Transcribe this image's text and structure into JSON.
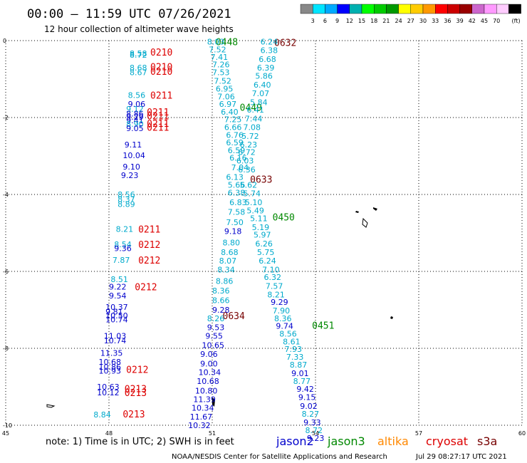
{
  "header": {
    "title": "00:00 – 11:59 UTC 07/26/2021",
    "subtitle": "12 hour collection of altimeter wave heights"
  },
  "colorbar": {
    "unit": "(ft)",
    "bins": [
      {
        "color": "#888888",
        "label": ""
      },
      {
        "color": "#00e5ff",
        "label": "3"
      },
      {
        "color": "#00aaff",
        "label": "6"
      },
      {
        "color": "#0000ff",
        "label": "9"
      },
      {
        "color": "#00b0b0",
        "label": "12"
      },
      {
        "color": "#00ff00",
        "label": "15"
      },
      {
        "color": "#00cc00",
        "label": "18"
      },
      {
        "color": "#009900",
        "label": "21"
      },
      {
        "color": "#ffff00",
        "label": "24"
      },
      {
        "color": "#ffcc00",
        "label": "27"
      },
      {
        "color": "#ff9900",
        "label": "30"
      },
      {
        "color": "#ff0000",
        "label": "33"
      },
      {
        "color": "#cc0000",
        "label": "36"
      },
      {
        "color": "#990000",
        "label": "39"
      },
      {
        "color": "#cc66cc",
        "label": "42"
      },
      {
        "color": "#ff99ff",
        "label": "45"
      },
      {
        "color": "#ffccff",
        "label": "70"
      },
      {
        "color": "#000000",
        "label": ""
      }
    ]
  },
  "axes": {
    "x_ticks": [
      "45",
      "48",
      "51",
      "54",
      "57",
      "60"
    ],
    "y_ticks": [
      "0",
      "-2",
      "-4",
      "-6",
      "-8",
      "-10"
    ],
    "lon_range": [
      45,
      60
    ],
    "lat_range": [
      -10,
      0
    ]
  },
  "colors": {
    "jason2": "#0000cc",
    "jason3": "#008800",
    "altika": "#ff8800",
    "cryosat": "#dd0000",
    "s3a": "#770000",
    "cyan": "#00aacc",
    "gridline": "#000000"
  },
  "passes": [
    {
      "label": "0210",
      "color": "#dd0000",
      "lon": 49.2,
      "lat": -0.3
    },
    {
      "label": "0210",
      "color": "#dd0000",
      "lon": 49.2,
      "lat": -0.68
    },
    {
      "label": "0210",
      "color": "#dd0000",
      "lon": 49.2,
      "lat": -0.8
    },
    {
      "label": "0211",
      "color": "#dd0000",
      "lon": 49.2,
      "lat": -1.42
    },
    {
      "label": "0211",
      "color": "#dd0000",
      "lon": 49.1,
      "lat": -1.85
    },
    {
      "label": "0211",
      "color": "#dd0000",
      "lon": 49.1,
      "lat": -1.95
    },
    {
      "label": "0211",
      "color": "#dd0000",
      "lon": 49.1,
      "lat": -2.15
    },
    {
      "label": "0211",
      "color": "#dd0000",
      "lon": 49.1,
      "lat": -2.25
    },
    {
      "label": "0211",
      "color": "#dd0000",
      "lon": 48.85,
      "lat": -4.9
    },
    {
      "label": "0212",
      "color": "#dd0000",
      "lon": 48.85,
      "lat": -5.3
    },
    {
      "label": "0212",
      "color": "#dd0000",
      "lon": 48.85,
      "lat": -5.7
    },
    {
      "label": "0212",
      "color": "#dd0000",
      "lon": 48.75,
      "lat": -6.4
    },
    {
      "label": "0212",
      "color": "#dd0000",
      "lon": 48.5,
      "lat": -8.55
    },
    {
      "label": "0213",
      "color": "#dd0000",
      "lon": 48.45,
      "lat": -9.05
    },
    {
      "label": "0213",
      "color": "#dd0000",
      "lon": 48.45,
      "lat": -9.15
    },
    {
      "label": "0213",
      "color": "#dd0000",
      "lon": 48.4,
      "lat": -9.7
    },
    {
      "label": "0448",
      "color": "#008800",
      "lon": 51.1,
      "lat": -0.03
    },
    {
      "label": "0449",
      "color": "#008800",
      "lon": 51.8,
      "lat": -1.73
    },
    {
      "label": "0450",
      "color": "#008800",
      "lon": 52.75,
      "lat": -4.58
    },
    {
      "label": "0451",
      "color": "#008800",
      "lon": 53.9,
      "lat": -7.4
    },
    {
      "label": "0632",
      "color": "#770000",
      "lon": 52.8,
      "lat": -0.05
    },
    {
      "label": "0633",
      "color": "#770000",
      "lon": 52.1,
      "lat": -3.6
    },
    {
      "label": "0634",
      "color": "#770000",
      "lon": 51.3,
      "lat": -7.15
    }
  ],
  "readings": [
    {
      "v": "8.58",
      "c": "#00aacc",
      "lon": 48.6,
      "lat": -0.33
    },
    {
      "v": "8.72",
      "c": "#00aacc",
      "lon": 48.6,
      "lat": -0.37
    },
    {
      "v": "8.68",
      "c": "#00aacc",
      "lon": 48.6,
      "lat": -0.7
    },
    {
      "v": "8.67",
      "c": "#00aacc",
      "lon": 48.6,
      "lat": -0.82
    },
    {
      "v": "8.56",
      "c": "#00aacc",
      "lon": 48.55,
      "lat": -1.42
    },
    {
      "v": "9.06",
      "c": "#0000cc",
      "lon": 48.55,
      "lat": -1.65
    },
    {
      "v": "9.12",
      "c": "#00aacc",
      "lon": 48.5,
      "lat": -1.78
    },
    {
      "v": "8.86",
      "c": "#0000cc",
      "lon": 48.5,
      "lat": -1.9
    },
    {
      "v": "9.29",
      "c": "#0000cc",
      "lon": 48.5,
      "lat": -1.98
    },
    {
      "v": "9.41",
      "c": "#0000cc",
      "lon": 48.5,
      "lat": -2.07
    },
    {
      "v": "8.90",
      "c": "#00aacc",
      "lon": 48.5,
      "lat": -2.17
    },
    {
      "v": "9.05",
      "c": "#0000cc",
      "lon": 48.5,
      "lat": -2.28
    },
    {
      "v": "9.11",
      "c": "#0000cc",
      "lon": 48.45,
      "lat": -2.7
    },
    {
      "v": "10.04",
      "c": "#0000cc",
      "lon": 48.4,
      "lat": -2.98
    },
    {
      "v": "9.10",
      "c": "#0000cc",
      "lon": 48.4,
      "lat": -3.28
    },
    {
      "v": "9.23",
      "c": "#0000cc",
      "lon": 48.35,
      "lat": -3.5
    },
    {
      "v": "8.56",
      "c": "#00aacc",
      "lon": 48.25,
      "lat": -4.0
    },
    {
      "v": "8.37",
      "c": "#00aacc",
      "lon": 48.25,
      "lat": -4.12
    },
    {
      "v": "8.89",
      "c": "#00aacc",
      "lon": 48.25,
      "lat": -4.25
    },
    {
      "v": "8.21",
      "c": "#00aacc",
      "lon": 48.2,
      "lat": -4.9
    },
    {
      "v": "8.54",
      "c": "#00aacc",
      "lon": 48.15,
      "lat": -5.3
    },
    {
      "v": "9.36",
      "c": "#0000cc",
      "lon": 48.15,
      "lat": -5.4
    },
    {
      "v": "7.87",
      "c": "#00aacc",
      "lon": 48.1,
      "lat": -5.7
    },
    {
      "v": "8.51",
      "c": "#00aacc",
      "lon": 48.05,
      "lat": -6.2
    },
    {
      "v": "9.22",
      "c": "#0000cc",
      "lon": 48.0,
      "lat": -6.4
    },
    {
      "v": "9.54",
      "c": "#0000cc",
      "lon": 48.0,
      "lat": -6.63
    },
    {
      "v": "10.37",
      "c": "#0000cc",
      "lon": 47.9,
      "lat": -6.93
    },
    {
      "v": "9.81",
      "c": "#0000cc",
      "lon": 47.9,
      "lat": -7.05
    },
    {
      "v": "10.50",
      "c": "#0000cc",
      "lon": 47.9,
      "lat": -7.15
    },
    {
      "v": "10.74",
      "c": "#0000cc",
      "lon": 47.9,
      "lat": -7.25
    },
    {
      "v": "11.03",
      "c": "#0000cc",
      "lon": 47.85,
      "lat": -7.68
    },
    {
      "v": "10.74",
      "c": "#0000cc",
      "lon": 47.85,
      "lat": -7.8
    },
    {
      "v": "11.35",
      "c": "#0000cc",
      "lon": 47.75,
      "lat": -8.12
    },
    {
      "v": "10.68",
      "c": "#0000cc",
      "lon": 47.7,
      "lat": -8.35
    },
    {
      "v": "10.86",
      "c": "#0000cc",
      "lon": 47.7,
      "lat": -8.48
    },
    {
      "v": "10.93",
      "c": "#0000cc",
      "lon": 47.7,
      "lat": -8.58
    },
    {
      "v": "10.63",
      "c": "#0000cc",
      "lon": 47.65,
      "lat": -9.0
    },
    {
      "v": "10.12",
      "c": "#0000cc",
      "lon": 47.65,
      "lat": -9.15
    },
    {
      "v": "8.84",
      "c": "#00aacc",
      "lon": 47.55,
      "lat": -9.72
    },
    {
      "v": "8.03",
      "c": "#00aacc",
      "lon": 50.85,
      "lat": -0.03
    },
    {
      "v": "7.52",
      "c": "#00aacc",
      "lon": 50.9,
      "lat": -0.23
    },
    {
      "v": "7.41",
      "c": "#00aacc",
      "lon": 50.95,
      "lat": -0.43
    },
    {
      "v": "7.26",
      "c": "#00aacc",
      "lon": 51.0,
      "lat": -0.62
    },
    {
      "v": "7.53",
      "c": "#00aacc",
      "lon": 51.0,
      "lat": -0.82
    },
    {
      "v": "7.52",
      "c": "#00aacc",
      "lon": 51.05,
      "lat": -1.05
    },
    {
      "v": "6.95",
      "c": "#00aacc",
      "lon": 51.1,
      "lat": -1.25
    },
    {
      "v": "7.06",
      "c": "#00aacc",
      "lon": 51.15,
      "lat": -1.45
    },
    {
      "v": "6.97",
      "c": "#00aacc",
      "lon": 51.2,
      "lat": -1.65
    },
    {
      "v": "6.40",
      "c": "#00aacc",
      "lon": 51.25,
      "lat": -1.85
    },
    {
      "v": "7.25",
      "c": "#00aacc",
      "lon": 51.35,
      "lat": -2.05
    },
    {
      "v": "6.66",
      "c": "#00aacc",
      "lon": 51.35,
      "lat": -2.25
    },
    {
      "v": "6.76",
      "c": "#00aacc",
      "lon": 51.4,
      "lat": -2.45
    },
    {
      "v": "6.59",
      "c": "#00aacc",
      "lon": 51.4,
      "lat": -2.65
    },
    {
      "v": "6.59",
      "c": "#00aacc",
      "lon": 51.45,
      "lat": -2.85
    },
    {
      "v": "6.16",
      "c": "#00aacc",
      "lon": 51.5,
      "lat": -3.05
    },
    {
      "v": "7.04",
      "c": "#00aacc",
      "lon": 51.55,
      "lat": -3.3
    },
    {
      "v": "6.13",
      "c": "#00aacc",
      "lon": 51.4,
      "lat": -3.55
    },
    {
      "v": "5.66",
      "c": "#00aacc",
      "lon": 51.45,
      "lat": -3.75
    },
    {
      "v": "6.38",
      "c": "#00aacc",
      "lon": 51.45,
      "lat": -3.95
    },
    {
      "v": "6.83",
      "c": "#00aacc",
      "lon": 51.5,
      "lat": -4.2
    },
    {
      "v": "7.58",
      "c": "#00aacc",
      "lon": 51.45,
      "lat": -4.45
    },
    {
      "v": "7.50",
      "c": "#00aacc",
      "lon": 51.4,
      "lat": -4.72
    },
    {
      "v": "9.18",
      "c": "#0000cc",
      "lon": 51.35,
      "lat": -4.95
    },
    {
      "v": "8.80",
      "c": "#00aacc",
      "lon": 51.3,
      "lat": -5.25
    },
    {
      "v": "8.68",
      "c": "#00aacc",
      "lon": 51.25,
      "lat": -5.5
    },
    {
      "v": "8.07",
      "c": "#00aacc",
      "lon": 51.2,
      "lat": -5.72
    },
    {
      "v": "8.34",
      "c": "#00aacc",
      "lon": 51.15,
      "lat": -5.95
    },
    {
      "v": "8.86",
      "c": "#00aacc",
      "lon": 51.1,
      "lat": -6.25
    },
    {
      "v": "8.36",
      "c": "#00aacc",
      "lon": 51.0,
      "lat": -6.5
    },
    {
      "v": "8.66",
      "c": "#00aacc",
      "lon": 51.0,
      "lat": -6.75
    },
    {
      "v": "9.28",
      "c": "#0000cc",
      "lon": 51.0,
      "lat": -7.0
    },
    {
      "v": "8.26",
      "c": "#00aacc",
      "lon": 50.85,
      "lat": -7.22
    },
    {
      "v": "9.53",
      "c": "#0000cc",
      "lon": 50.85,
      "lat": -7.45
    },
    {
      "v": "9.55",
      "c": "#0000cc",
      "lon": 50.8,
      "lat": -7.68
    },
    {
      "v": "10.65",
      "c": "#0000cc",
      "lon": 50.7,
      "lat": -7.92
    },
    {
      "v": "9.06",
      "c": "#0000cc",
      "lon": 50.65,
      "lat": -8.15
    },
    {
      "v": "9.00",
      "c": "#0000cc",
      "lon": 50.65,
      "lat": -8.4
    },
    {
      "v": "10.34",
      "c": "#0000cc",
      "lon": 50.6,
      "lat": -8.62
    },
    {
      "v": "10.68",
      "c": "#0000cc",
      "lon": 50.55,
      "lat": -8.85
    },
    {
      "v": "10.80",
      "c": "#0000cc",
      "lon": 50.5,
      "lat": -9.1
    },
    {
      "v": "11.39",
      "c": "#0000cc",
      "lon": 50.45,
      "lat": -9.32
    },
    {
      "v": "10.34",
      "c": "#0000cc",
      "lon": 50.4,
      "lat": -9.55
    },
    {
      "v": "11.67",
      "c": "#0000cc",
      "lon": 50.35,
      "lat": -9.78
    },
    {
      "v": "10.32",
      "c": "#0000cc",
      "lon": 50.3,
      "lat": -10.0
    },
    {
      "v": "6.24",
      "c": "#00aacc",
      "lon": 52.4,
      "lat": -0.03
    },
    {
      "v": "6.38",
      "c": "#00aacc",
      "lon": 52.4,
      "lat": -0.25
    },
    {
      "v": "6.68",
      "c": "#00aacc",
      "lon": 52.35,
      "lat": -0.48
    },
    {
      "v": "6.39",
      "c": "#00aacc",
      "lon": 52.3,
      "lat": -0.7
    },
    {
      "v": "5.86",
      "c": "#00aacc",
      "lon": 52.25,
      "lat": -0.92
    },
    {
      "v": "6.40",
      "c": "#00aacc",
      "lon": 52.2,
      "lat": -1.15
    },
    {
      "v": "7.07",
      "c": "#00aacc",
      "lon": 52.15,
      "lat": -1.37
    },
    {
      "v": "5.84",
      "c": "#00aacc",
      "lon": 52.1,
      "lat": -1.6
    },
    {
      "v": "6.41",
      "c": "#00aacc",
      "lon": 52.0,
      "lat": -1.8
    },
    {
      "v": "7.44",
      "c": "#00aacc",
      "lon": 51.95,
      "lat": -2.03
    },
    {
      "v": "7.08",
      "c": "#00aacc",
      "lon": 51.9,
      "lat": -2.25
    },
    {
      "v": "5.72",
      "c": "#00aacc",
      "lon": 51.85,
      "lat": -2.48
    },
    {
      "v": "6.23",
      "c": "#00aacc",
      "lon": 51.8,
      "lat": -2.7
    },
    {
      "v": "6.72",
      "c": "#00aacc",
      "lon": 51.75,
      "lat": -2.9
    },
    {
      "v": "6.03",
      "c": "#00aacc",
      "lon": 51.7,
      "lat": -3.12
    },
    {
      "v": "6.36",
      "c": "#00aacc",
      "lon": 51.75,
      "lat": -3.35
    },
    {
      "v": "5.62",
      "c": "#00aacc",
      "lon": 51.8,
      "lat": -3.75
    },
    {
      "v": "5.74",
      "c": "#00aacc",
      "lon": 51.9,
      "lat": -3.97
    },
    {
      "v": "5.10",
      "c": "#00aacc",
      "lon": 51.95,
      "lat": -4.2
    },
    {
      "v": "5.49",
      "c": "#00aacc",
      "lon": 52.0,
      "lat": -4.42
    },
    {
      "v": "5.11",
      "c": "#00aacc",
      "lon": 52.1,
      "lat": -4.62
    },
    {
      "v": "5.19",
      "c": "#00aacc",
      "lon": 52.15,
      "lat": -4.85
    },
    {
      "v": "5.97",
      "c": "#00aacc",
      "lon": 52.2,
      "lat": -5.05
    },
    {
      "v": "6.26",
      "c": "#00aacc",
      "lon": 52.25,
      "lat": -5.28
    },
    {
      "v": "5.75",
      "c": "#00aacc",
      "lon": 52.3,
      "lat": -5.5
    },
    {
      "v": "6.24",
      "c": "#00aacc",
      "lon": 52.35,
      "lat": -5.72
    },
    {
      "v": "7.10",
      "c": "#00aacc",
      "lon": 52.45,
      "lat": -5.95
    },
    {
      "v": "6.32",
      "c": "#00aacc",
      "lon": 52.5,
      "lat": -6.15
    },
    {
      "v": "7.57",
      "c": "#00aacc",
      "lon": 52.55,
      "lat": -6.38
    },
    {
      "v": "8.21",
      "c": "#00aacc",
      "lon": 52.6,
      "lat": -6.6
    },
    {
      "v": "9.29",
      "c": "#0000cc",
      "lon": 52.7,
      "lat": -6.8
    },
    {
      "v": "7.90",
      "c": "#00aacc",
      "lon": 52.75,
      "lat": -7.02
    },
    {
      "v": "8.36",
      "c": "#00aacc",
      "lon": 52.8,
      "lat": -7.22
    },
    {
      "v": "9.74",
      "c": "#0000cc",
      "lon": 52.85,
      "lat": -7.42
    },
    {
      "v": "8.56",
      "c": "#00aacc",
      "lon": 52.95,
      "lat": -7.62
    },
    {
      "v": "8.61",
      "c": "#00aacc",
      "lon": 53.05,
      "lat": -7.82
    },
    {
      "v": "7.93",
      "c": "#00aacc",
      "lon": 53.1,
      "lat": -8.02
    },
    {
      "v": "7.33",
      "c": "#00aacc",
      "lon": 53.15,
      "lat": -8.22
    },
    {
      "v": "8.87",
      "c": "#00aacc",
      "lon": 53.25,
      "lat": -8.43
    },
    {
      "v": "9.01",
      "c": "#0000cc",
      "lon": 53.3,
      "lat": -8.65
    },
    {
      "v": "8.77",
      "c": "#00aacc",
      "lon": 53.35,
      "lat": -8.85
    },
    {
      "v": "9.42",
      "c": "#0000cc",
      "lon": 53.45,
      "lat": -9.06
    },
    {
      "v": "9.15",
      "c": "#0000cc",
      "lon": 53.5,
      "lat": -9.27
    },
    {
      "v": "9.02",
      "c": "#0000cc",
      "lon": 53.55,
      "lat": -9.5
    },
    {
      "v": "8.27",
      "c": "#00aacc",
      "lon": 53.6,
      "lat": -9.7
    },
    {
      "v": "9.33",
      "c": "#0000cc",
      "lon": 53.65,
      "lat": -9.93
    },
    {
      "v": "8.72",
      "c": "#00aacc",
      "lon": 53.7,
      "lat": -10.13
    },
    {
      "v": "9.23",
      "c": "#0000cc",
      "lon": 53.75,
      "lat": -10.33
    }
  ],
  "footer": {
    "note": "note:  1) Time is in UTC;  2) SWH is in feet",
    "legend": [
      {
        "label": "jason2",
        "color": "#0000cc"
      },
      {
        "label": "jason3",
        "color": "#008800"
      },
      {
        "label": "altika",
        "color": "#ff8800"
      },
      {
        "label": "cryosat",
        "color": "#dd0000"
      },
      {
        "label": "s3a",
        "color": "#770000"
      }
    ],
    "credit": "NOAA/NESDIS Center for Satellite Applications and Research",
    "timestamp": "Jul 29 08:27:17 UTC 2021"
  }
}
